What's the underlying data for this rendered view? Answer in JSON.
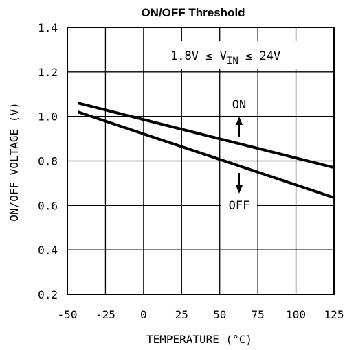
{
  "chart_data": {
    "type": "line",
    "title": "ON/OFF Threshold",
    "xlabel": "TEMPERATURE (°C)",
    "ylabel": "ON/OFF VOLTAGE (V)",
    "xlim": [
      -50,
      125
    ],
    "ylim": [
      0.2,
      1.4
    ],
    "xticks": [
      -50,
      -25,
      0,
      25,
      50,
      75,
      100,
      125
    ],
    "yticks": [
      0.2,
      0.4,
      0.6,
      0.8,
      1.0,
      1.2,
      1.4
    ],
    "ytick_labels": [
      "0.2",
      "0.4",
      "0.6",
      "0.8",
      "1.0",
      "1.2",
      "1.4"
    ],
    "grid": true,
    "series": [
      {
        "name": "ON",
        "x": [
          -43,
          125
        ],
        "y": [
          1.06,
          0.77
        ]
      },
      {
        "name": "OFF",
        "x": [
          -43,
          125
        ],
        "y": [
          1.02,
          0.635
        ]
      }
    ],
    "annotations": {
      "condition": {
        "prefix": "1.8V ≤ V",
        "subscript": "IN",
        "suffix": " ≤ 24V"
      },
      "on_label": "ON",
      "off_label": "OFF"
    }
  }
}
